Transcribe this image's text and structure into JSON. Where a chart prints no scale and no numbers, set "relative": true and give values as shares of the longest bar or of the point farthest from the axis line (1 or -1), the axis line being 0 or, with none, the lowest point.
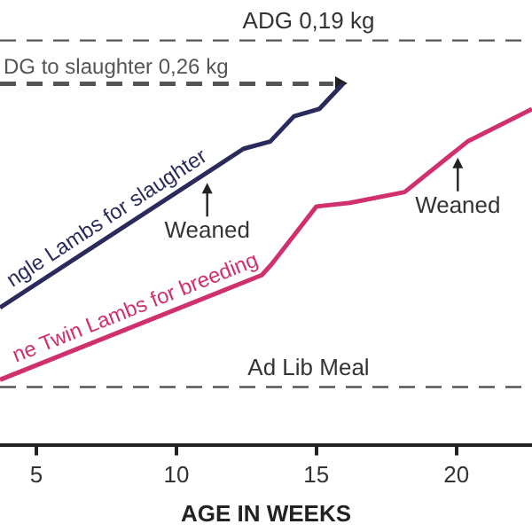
{
  "chart_data": {
    "type": "line",
    "relative": true,
    "xlabel": "AGE IN WEEKS",
    "xlim": [
      3.7,
      22.7
    ],
    "xticks": [
      5,
      10,
      15,
      20
    ],
    "grid": false,
    "legend": false,
    "marker": "none",
    "series": [
      {
        "name": "ngle Lambs for slaughter",
        "color": "#2b2a5c",
        "line_style": "solid",
        "x": [
          3.7,
          12.4,
          13.35,
          14.2,
          15.1,
          15.95
        ],
        "values": [
          0.38,
          0.82,
          0.84,
          0.91,
          0.93,
          1
        ]
      },
      {
        "name": "ne Twin Lambs for breeding",
        "color": "#d1306e",
        "line_style": "solid",
        "x": [
          3.7,
          13.05,
          13.4,
          15.0,
          16.2,
          18.15,
          20.4,
          22.7
        ],
        "values": [
          0.18,
          0.47,
          0.5,
          0.66,
          0.67,
          0.7,
          0.84,
          0.93
        ]
      },
      {
        "name": "DG to slaughter 0,26 kg",
        "color": "#555555",
        "line_style": "dashed",
        "x": [
          3.7,
          15.6
        ],
        "values": [
          1,
          1
        ]
      }
    ],
    "ref_lines": [
      {
        "axis": "y",
        "value": 1.12,
        "label": "ADG 0,19 kg",
        "color": "#555555",
        "line_style": "dashed"
      },
      {
        "axis": "y",
        "value": 0.16,
        "label": "Ad Lib Meal",
        "color": "#555555",
        "line_style": "dashed"
      }
    ],
    "annotations": [
      {
        "text": "Weaned",
        "x": 11.1,
        "y": 0.75
      },
      {
        "text": "Weaned",
        "x": 20.05,
        "y": 0.82
      }
    ]
  }
}
